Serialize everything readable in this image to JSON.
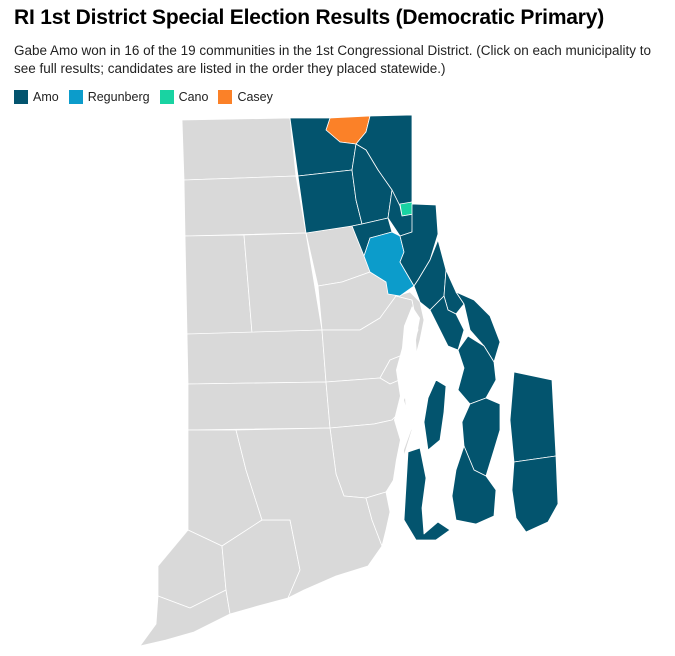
{
  "header": {
    "title": "RI 1st District Special Election Results (Democratic Primary)",
    "subtitle": "Gabe Amo won in 16 of the 19 communities in the 1st Congressional District. (Click on each municipality to see full results; candidates are listed in the order they placed statewide.)"
  },
  "legend": [
    {
      "label": "Amo",
      "color": "#03546e"
    },
    {
      "label": "Regunberg",
      "color": "#0c9ccb"
    },
    {
      "label": "Cano",
      "color": "#19d3a2"
    },
    {
      "label": "Casey",
      "color": "#fb8128"
    }
  ],
  "colors": {
    "amo": "#03546e",
    "regunberg": "#0c9ccb",
    "cano": "#19d3a2",
    "casey": "#fb8128",
    "other_district": "#d9d9d9",
    "border": "#ffffff"
  }
}
